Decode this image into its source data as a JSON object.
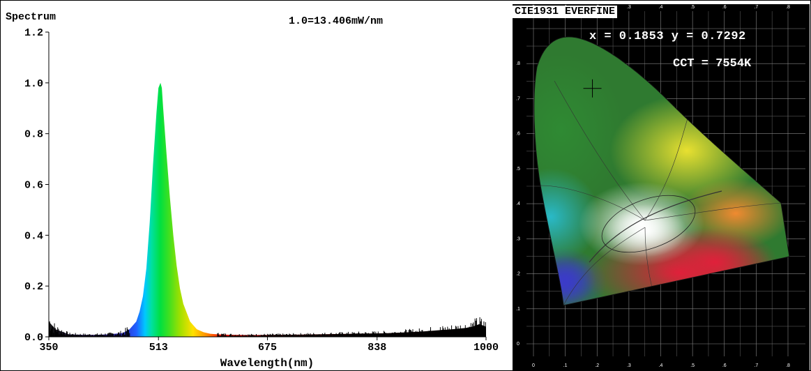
{
  "chart_data": [
    {
      "type": "area",
      "title": "Spectrum",
      "annotation": "1.0=13.406mW/nm",
      "xlabel": "Wavelength(nm)",
      "ylabel": "",
      "xlim": [
        350,
        1000
      ],
      "ylim": [
        0,
        1.2
      ],
      "x_ticks": [
        "350",
        "513",
        "675",
        "838",
        "1000"
      ],
      "y_ticks": [
        "0.0",
        "0.2",
        "0.4",
        "0.6",
        "0.8",
        "1.0",
        "1.2"
      ],
      "peak_wavelength_nm": 516,
      "x": [
        350,
        360,
        380,
        400,
        420,
        440,
        460,
        470,
        480,
        485,
        490,
        495,
        500,
        505,
        510,
        513,
        516,
        518,
        520,
        525,
        530,
        535,
        540,
        545,
        550,
        560,
        570,
        580,
        590,
        600,
        620,
        650,
        700,
        750,
        800,
        850,
        900,
        950,
        970,
        980,
        990,
        1000
      ],
      "values": [
        0.06,
        0.03,
        0.01,
        0.008,
        0.008,
        0.01,
        0.015,
        0.03,
        0.06,
        0.1,
        0.16,
        0.27,
        0.45,
        0.68,
        0.88,
        0.98,
        1.0,
        0.98,
        0.9,
        0.72,
        0.55,
        0.4,
        0.28,
        0.19,
        0.13,
        0.06,
        0.03,
        0.018,
        0.012,
        0.01,
        0.008,
        0.007,
        0.008,
        0.01,
        0.012,
        0.014,
        0.02,
        0.03,
        0.035,
        0.04,
        0.05,
        0.04
      ],
      "grid": false,
      "fill": "spectral-colors"
    },
    {
      "type": "scatter",
      "title": "CIE1931 EVERFINE",
      "x_ticks": [
        "0",
        ".1",
        ".2",
        ".3",
        ".4",
        ".5",
        ".6",
        ".7",
        ".8"
      ],
      "y_ticks": [
        "0",
        ".1",
        ".2",
        ".3",
        ".4",
        ".5",
        ".6",
        ".7",
        ".8"
      ],
      "xlim": [
        0,
        0.8
      ],
      "ylim": [
        0,
        0.9
      ],
      "point": {
        "x": 0.1853,
        "y": 0.7292
      },
      "xy_text": "x = 0.1853 y = 0.7292",
      "cct_text": "CCT = 7554K"
    }
  ]
}
